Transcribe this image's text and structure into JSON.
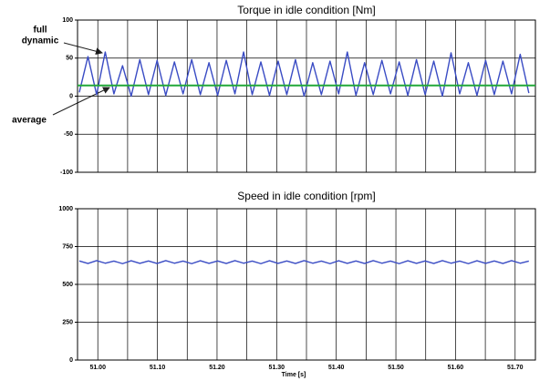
{
  "chart_data": [
    {
      "type": "line",
      "title": "Torque in idle condition [Nm]",
      "annotations": [
        {
          "lines": [
            "full",
            "dynamic"
          ]
        },
        {
          "lines": [
            "average"
          ]
        }
      ],
      "xlim": [
        50.966,
        51.734
      ],
      "xticks": [
        51.0,
        51.05,
        51.1,
        51.15,
        51.2,
        51.25,
        51.3,
        51.35,
        51.4,
        51.45,
        51.5,
        51.55,
        51.6,
        51.65,
        51.7
      ],
      "show_xtick_labels": false,
      "ylim": [
        -100,
        100
      ],
      "yticks": [
        100,
        50,
        0,
        -50,
        -100
      ],
      "grid": true,
      "series": [
        {
          "name": "full dynamic",
          "color": "#3a4cc4",
          "x": [
            50.969,
            50.9835,
            50.998,
            51.0125,
            51.027,
            51.0415,
            51.056,
            51.0705,
            51.085,
            51.0995,
            51.114,
            51.1285,
            51.143,
            51.1575,
            51.172,
            51.1865,
            51.201,
            51.2155,
            51.23,
            51.2445,
            51.259,
            51.2735,
            51.288,
            51.3025,
            51.317,
            51.3315,
            51.346,
            51.3605,
            51.375,
            51.3895,
            51.404,
            51.4185,
            51.433,
            51.4475,
            51.462,
            51.4765,
            51.491,
            51.5055,
            51.52,
            51.5345,
            51.549,
            51.5635,
            51.578,
            51.5925,
            51.607,
            51.6215,
            51.636,
            51.6505,
            51.665,
            51.6795,
            51.694,
            51.7085,
            51.723
          ],
          "values": [
            5,
            52,
            2,
            58,
            3,
            40,
            0,
            48,
            2,
            47,
            1,
            45,
            3,
            48,
            2,
            44,
            1,
            47,
            3,
            58,
            2,
            45,
            1,
            46,
            2,
            48,
            0,
            44,
            2,
            46,
            3,
            58,
            1,
            44,
            2,
            47,
            3,
            45,
            1,
            48,
            2,
            46,
            0,
            57,
            3,
            44,
            1,
            47,
            2,
            46,
            3,
            55,
            4
          ]
        },
        {
          "name": "average",
          "color": "#22a83a",
          "x": [
            50.966,
            51.734
          ],
          "values": [
            14,
            14
          ]
        }
      ]
    },
    {
      "type": "line",
      "title": "Speed in idle condition [rpm]",
      "xlabel": "Time [s]",
      "xlim": [
        50.966,
        51.734
      ],
      "xticks": [
        {
          "value": 51.0,
          "label": "51.00"
        },
        {
          "value": 51.05,
          "label": null
        },
        {
          "value": 51.1,
          "label": "51.10"
        },
        {
          "value": 51.15,
          "label": null
        },
        {
          "value": 51.2,
          "label": "51.20"
        },
        {
          "value": 51.25,
          "label": null
        },
        {
          "value": 51.3,
          "label": "51.30"
        },
        {
          "value": 51.35,
          "label": null
        },
        {
          "value": 51.4,
          "label": "51.40"
        },
        {
          "value": 51.45,
          "label": null
        },
        {
          "value": 51.5,
          "label": "51.50"
        },
        {
          "value": 51.55,
          "label": null
        },
        {
          "value": 51.6,
          "label": "51.60"
        },
        {
          "value": 51.65,
          "label": null
        },
        {
          "value": 51.7,
          "label": "51.70"
        }
      ],
      "show_xtick_labels": true,
      "ylim": [
        0,
        1000
      ],
      "yticks": [
        1000,
        750,
        500,
        250,
        0
      ],
      "grid": true,
      "series": [
        {
          "name": "speed",
          "color": "#3a4cc4",
          "x": [
            50.969,
            50.9835,
            50.998,
            51.0125,
            51.027,
            51.0415,
            51.056,
            51.0705,
            51.085,
            51.0995,
            51.114,
            51.1285,
            51.143,
            51.1575,
            51.172,
            51.1865,
            51.201,
            51.2155,
            51.23,
            51.2445,
            51.259,
            51.2735,
            51.288,
            51.3025,
            51.317,
            51.3315,
            51.346,
            51.3605,
            51.375,
            51.3895,
            51.404,
            51.4185,
            51.433,
            51.4475,
            51.462,
            51.4765,
            51.491,
            51.5055,
            51.52,
            51.5345,
            51.549,
            51.5635,
            51.578,
            51.5925,
            51.607,
            51.6215,
            51.636,
            51.6505,
            51.665,
            51.6795,
            51.694,
            51.7085,
            51.723
          ],
          "values": [
            655,
            638,
            657,
            640,
            654,
            637,
            656,
            639,
            655,
            638,
            657,
            640,
            654,
            637,
            656,
            639,
            655,
            638,
            657,
            640,
            654,
            637,
            656,
            639,
            655,
            638,
            657,
            640,
            654,
            637,
            656,
            639,
            655,
            638,
            657,
            640,
            654,
            637,
            656,
            639,
            655,
            638,
            657,
            640,
            654,
            637,
            656,
            639,
            655,
            638,
            657,
            640,
            654
          ]
        }
      ]
    }
  ]
}
